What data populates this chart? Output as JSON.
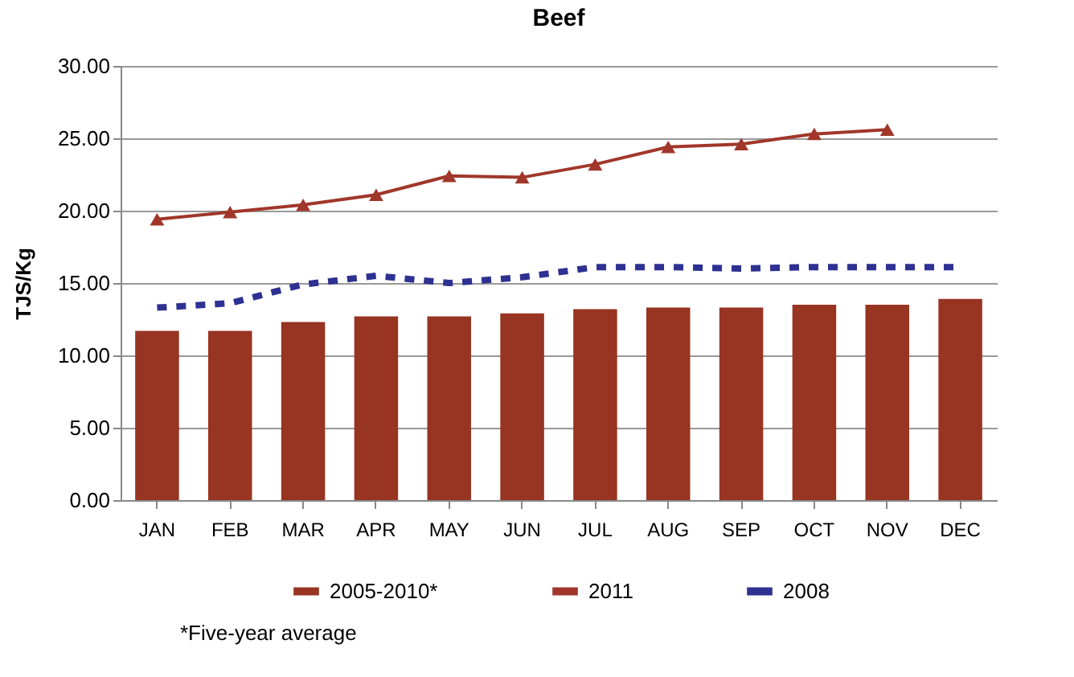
{
  "chart_data": {
    "type": "bar",
    "title": "Beef",
    "ylabel": "TJS/Kg",
    "categories": [
      "JAN",
      "FEB",
      "MAR",
      "APR",
      "MAY",
      "JUN",
      "JUL",
      "AUG",
      "SEP",
      "OCT",
      "NOV",
      "DEC"
    ],
    "series": [
      {
        "name": "2005-2010*",
        "color": "#983422",
        "values": [
          11.7,
          11.7,
          12.3,
          12.7,
          12.7,
          12.9,
          13.2,
          13.3,
          13.3,
          13.5,
          13.5,
          13.9
        ]
      },
      {
        "name": "2011",
        "type": "line",
        "color": "#a0372a",
        "marker": "triangle",
        "line_style": "solid",
        "values": [
          19.4,
          19.9,
          20.4,
          21.1,
          22.4,
          22.3,
          23.2,
          24.4,
          24.6,
          25.3,
          25.6,
          null
        ]
      },
      {
        "name": "2008",
        "type": "line",
        "color": "#2e3192",
        "marker": "none",
        "line_style": "dashed",
        "values": [
          13.3,
          13.6,
          14.9,
          15.5,
          15.0,
          15.4,
          16.1,
          16.1,
          16.0,
          16.1,
          16.1,
          16.1
        ]
      }
    ],
    "ylim": [
      0,
      30
    ],
    "yticks": [
      {
        "value": 0,
        "label": "0.00"
      },
      {
        "value": 5,
        "label": "5.00"
      },
      {
        "value": 10,
        "label": "10.00"
      },
      {
        "value": 15,
        "label": "15.00"
      },
      {
        "value": 20,
        "label": "20.00"
      },
      {
        "value": 25,
        "label": "25.00"
      },
      {
        "value": 30,
        "label": "30.00"
      }
    ],
    "grid": "y",
    "legend": "bottom",
    "annotations": [
      "*Five-year average"
    ]
  }
}
